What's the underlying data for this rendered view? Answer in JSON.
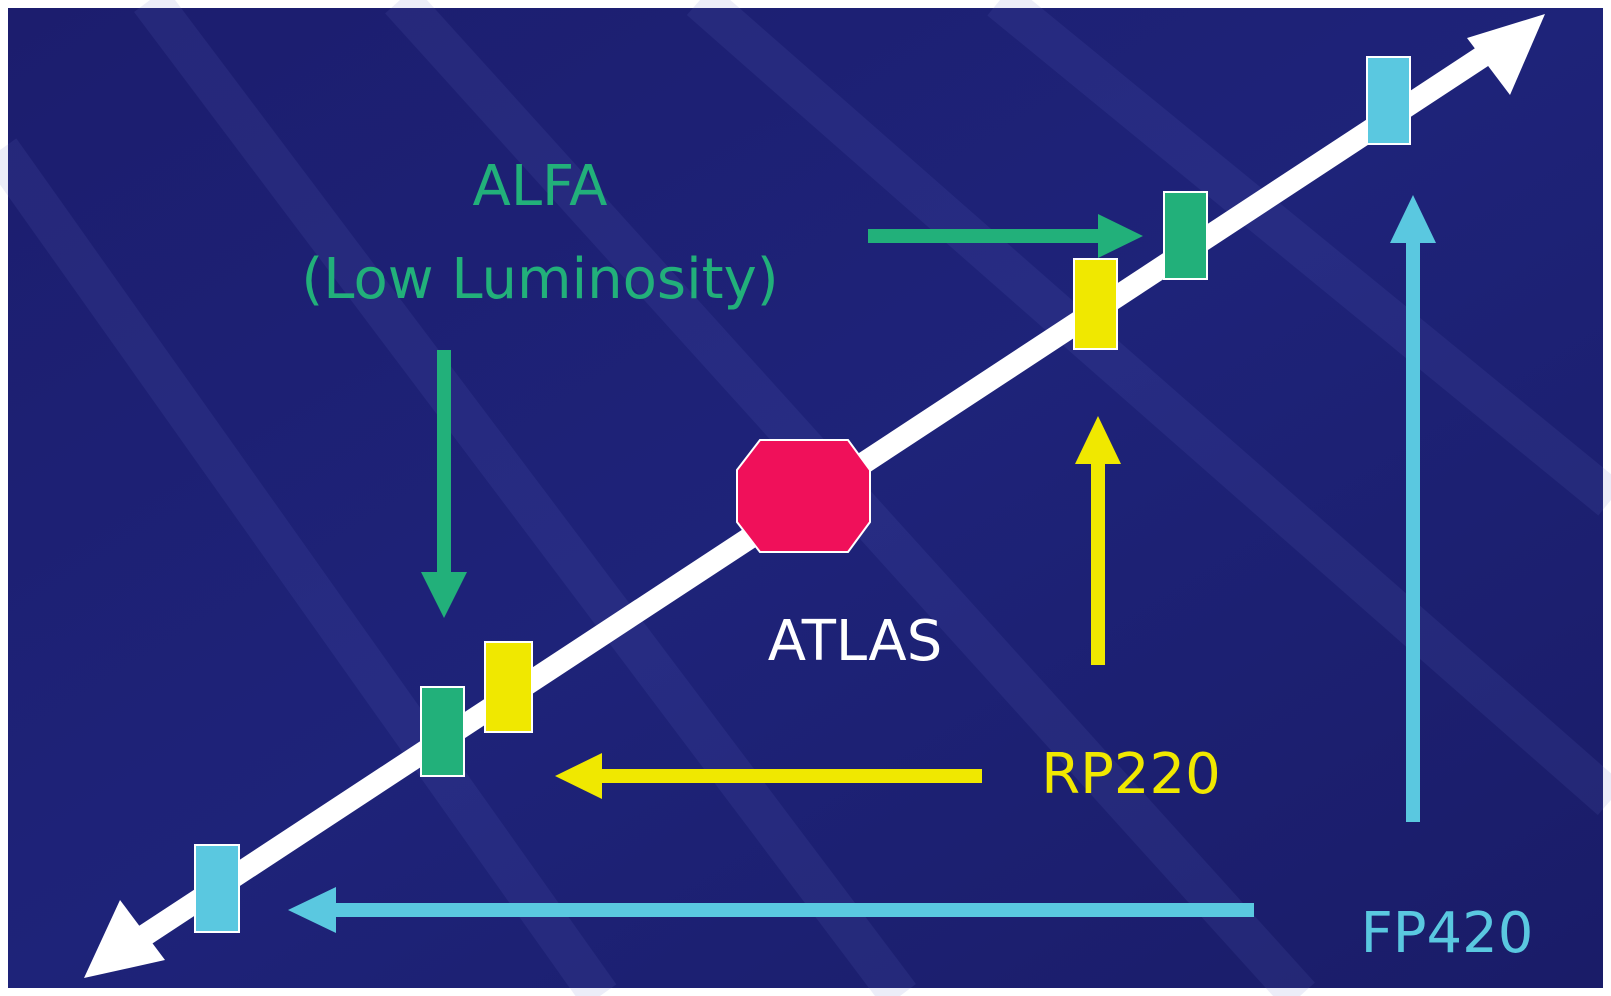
{
  "labels": {
    "alfa": "ALFA",
    "alfa_sub": "(Low Luminosity)",
    "atlas": "ATLAS",
    "rp220": "RP220",
    "fp420": "FP420"
  }
}
